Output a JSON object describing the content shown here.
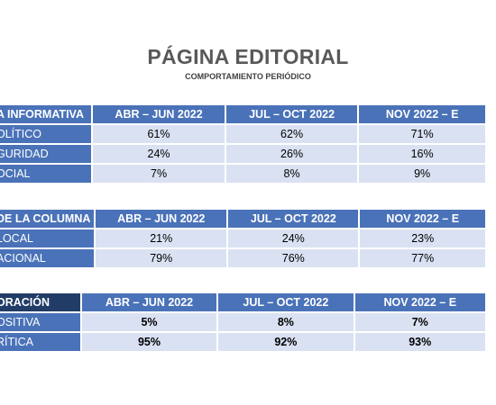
{
  "title": "PÁGINA EDITORIAL",
  "subtitle": "COMPORTAMIENTO PERIÓDICO",
  "tables": [
    {
      "header": [
        "A INFORMATIVA",
        "ABR – JUN 2022",
        "JUL – OCT 2022",
        "NOV 2022 – E"
      ],
      "rows": [
        [
          "OLÍTICO",
          "61%",
          "62%",
          "71%"
        ],
        [
          "GURIDAD",
          "24%",
          "26%",
          "16%"
        ],
        [
          "OCIAL",
          "7%",
          "8%",
          "9%"
        ]
      ]
    },
    {
      "header": [
        "DE LA COLUMNA",
        "ABR – JUN 2022",
        "JUL – OCT 2022",
        "NOV 2022 – E"
      ],
      "rows": [
        [
          "LOCAL",
          "21%",
          "24%",
          "23%"
        ],
        [
          "ACIONAL",
          "79%",
          "76%",
          "77%"
        ]
      ]
    },
    {
      "header": [
        "ORACIÓN",
        "ABR – JUN 2022",
        "JUL – OCT 2022",
        "NOV 2022 – E"
      ],
      "rows": [
        [
          "OSITIVA",
          "5%",
          "8%",
          "7%"
        ],
        [
          "RÍTICA",
          "95%",
          "92%",
          "93%"
        ]
      ]
    }
  ]
}
